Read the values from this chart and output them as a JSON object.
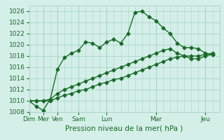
{
  "background_color": "#d4efe8",
  "grid_color": "#aad4c8",
  "line_color": "#1a6b2a",
  "marker_style": "D",
  "marker_size": 2.5,
  "line_width": 1.0,
  "xlim": [
    0,
    27
  ],
  "ylim": [
    1008,
    1027
  ],
  "yticks": [
    1008,
    1010,
    1012,
    1014,
    1016,
    1018,
    1020,
    1022,
    1024,
    1026
  ],
  "xlabel": "Pression niveau de la mer( hPa )",
  "xlabel_fontsize": 7.5,
  "tick_fontsize": 6.5,
  "day_labels": [
    "Dim",
    "Mer",
    "Ven",
    "Sam",
    "Lun",
    "Mar",
    "Jeu"
  ],
  "day_positions": [
    0,
    2,
    4,
    7,
    11,
    18,
    25
  ],
  "vline_positions": [
    0,
    2,
    4,
    7,
    11,
    18,
    25
  ],
  "series": [
    [
      1010.0,
      1009.0,
      1008.3,
      1010.3,
      1015.6,
      1017.7,
      1018.5,
      1019.0,
      1020.5,
      1020.3,
      1019.5,
      1020.5,
      1021.0,
      1020.3,
      1022.0,
      1025.8,
      1026.0,
      1025.0,
      1024.3,
      1023.0,
      1022.0,
      1020.3,
      1019.5,
      1019.5,
      1019.3,
      1018.5,
      1018.3
    ],
    [
      1010.0,
      1010.0,
      1010.0,
      1010.3,
      1011.3,
      1012.0,
      1012.5,
      1013.0,
      1013.5,
      1014.0,
      1014.5,
      1015.0,
      1015.5,
      1016.0,
      1016.5,
      1017.0,
      1017.5,
      1018.0,
      1018.5,
      1019.0,
      1019.3,
      1018.5,
      1018.0,
      1017.5,
      1017.5,
      1018.0,
      1018.3
    ],
    [
      1010.0,
      1010.0,
      1010.0,
      1010.0,
      1010.5,
      1011.0,
      1011.3,
      1011.8,
      1012.0,
      1012.5,
      1013.0,
      1013.3,
      1013.8,
      1014.0,
      1014.5,
      1015.0,
      1015.5,
      1016.0,
      1016.5,
      1017.0,
      1017.5,
      1017.8,
      1018.0,
      1018.0,
      1018.0,
      1018.3,
      1018.5
    ]
  ]
}
